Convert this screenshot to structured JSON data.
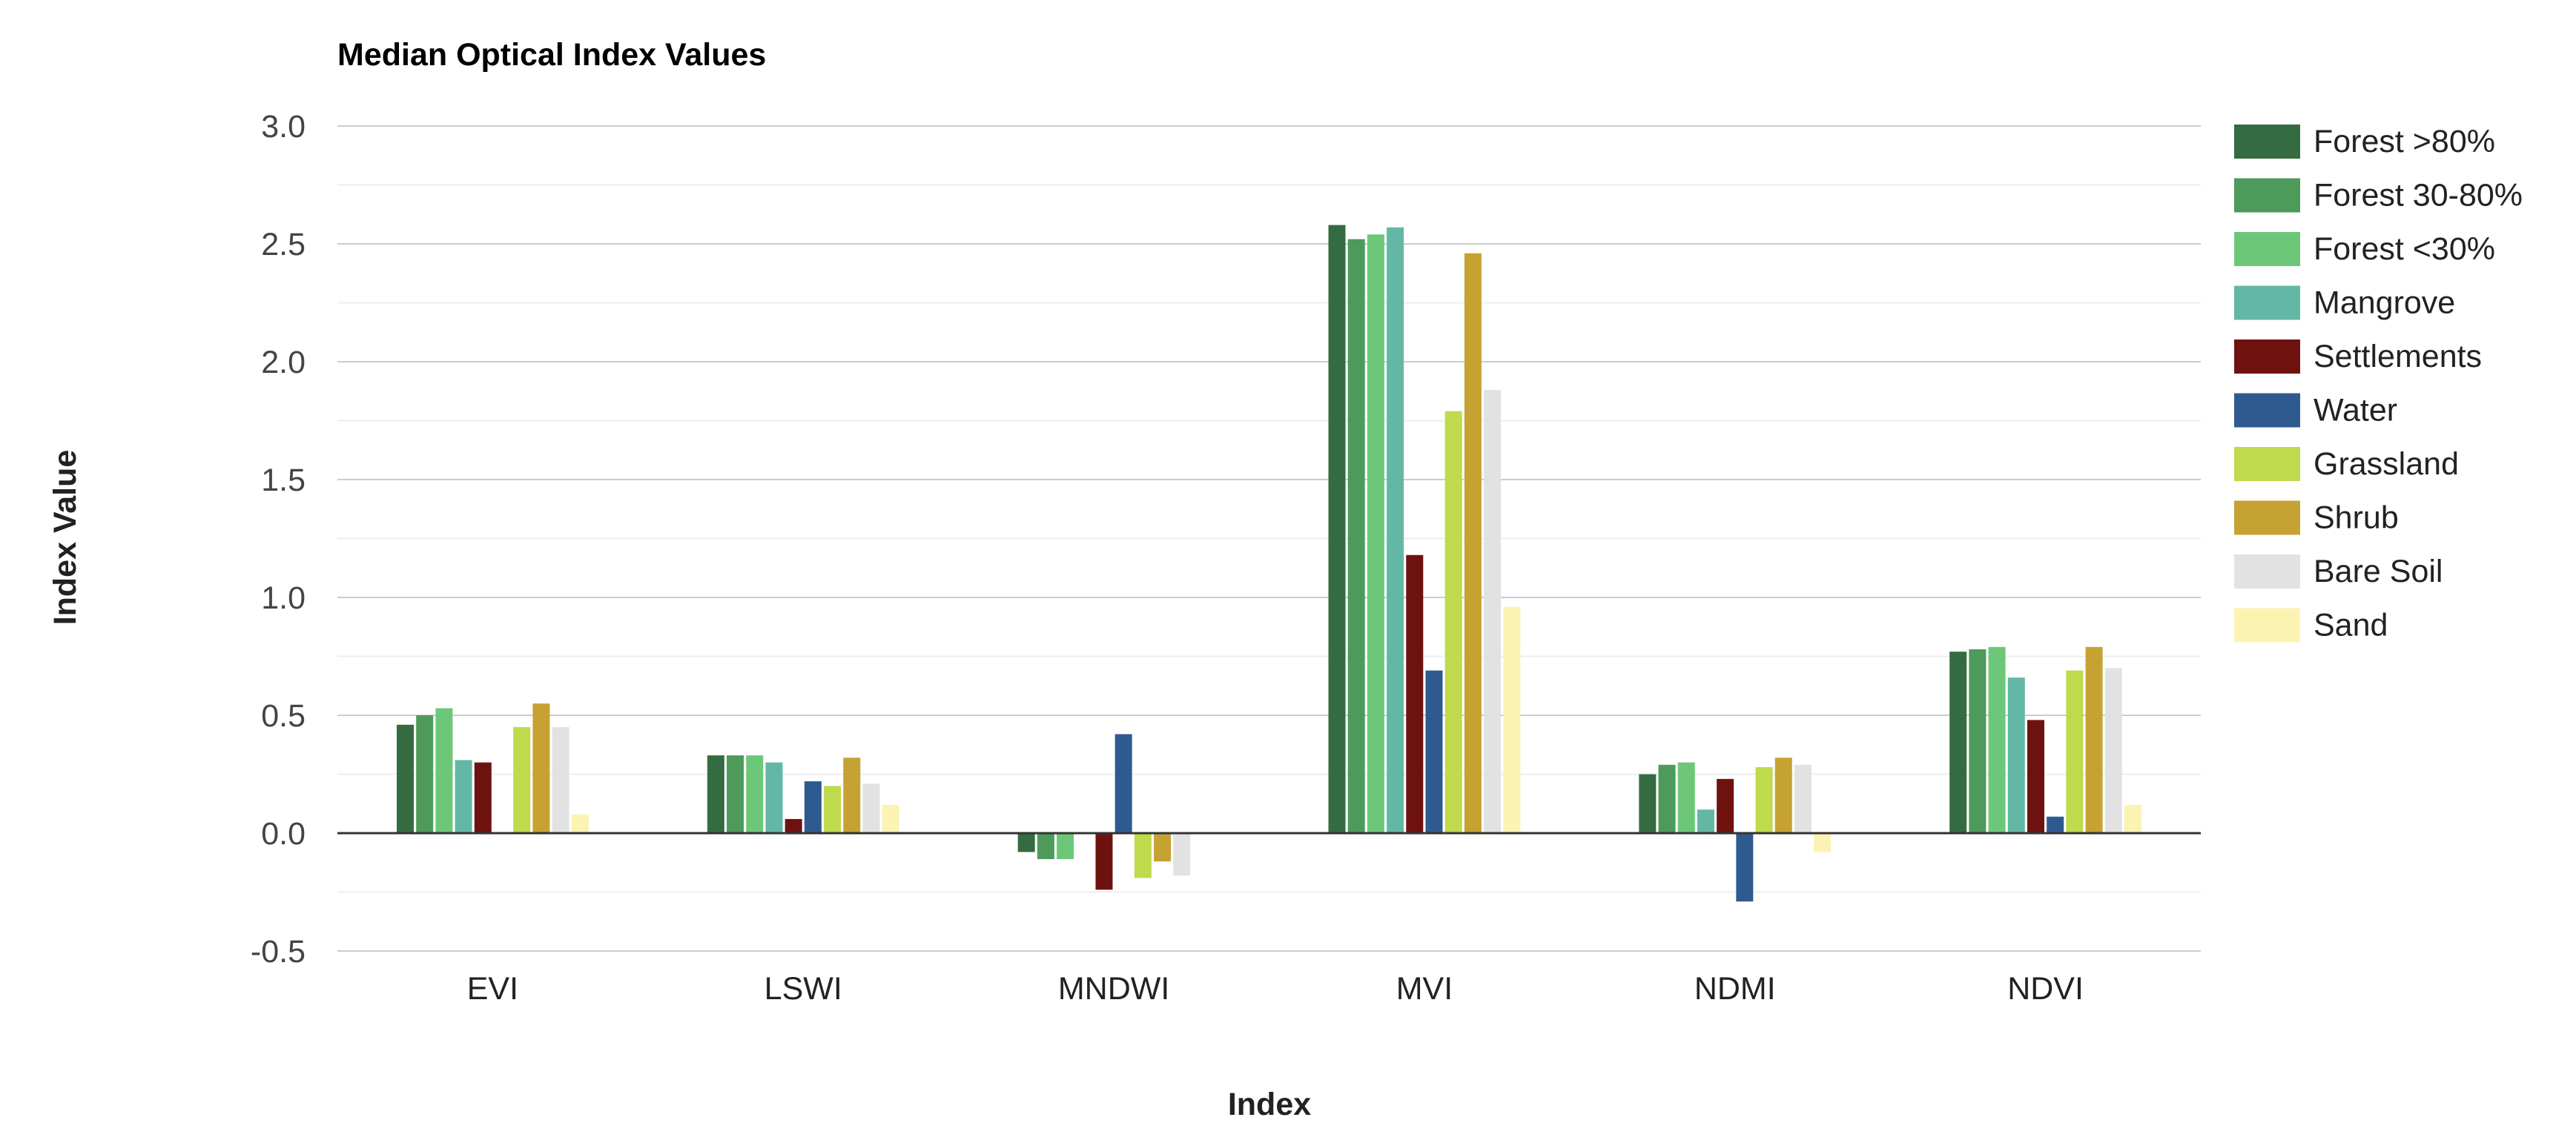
{
  "chart_data": {
    "type": "bar",
    "title": "Median Optical Index Values",
    "xlabel": "Index",
    "ylabel": "Index Value",
    "ylim": [
      -0.5,
      3.0
    ],
    "yticks": [
      "-0.5",
      "0.0",
      "0.5",
      "1.0",
      "1.5",
      "2.0",
      "2.5",
      "3.0"
    ],
    "grid": true,
    "legend_position": "right",
    "categories": [
      "EVI",
      "LSWI",
      "MNDWI",
      "MVI",
      "NDMI",
      "NDVI"
    ],
    "series": [
      {
        "name": "Forest >80%",
        "color": "#356b40",
        "values": [
          0.46,
          0.33,
          -0.08,
          2.58,
          0.25,
          0.77
        ]
      },
      {
        "name": "Forest 30-80%",
        "color": "#4d9a5b",
        "values": [
          0.5,
          0.33,
          -0.11,
          2.52,
          0.29,
          0.78
        ]
      },
      {
        "name": "Forest <30%",
        "color": "#6cc878",
        "values": [
          0.53,
          0.33,
          -0.11,
          2.54,
          0.3,
          0.79
        ]
      },
      {
        "name": "Mangrove",
        "color": "#63b8a5",
        "values": [
          0.31,
          0.3,
          0.0,
          2.57,
          0.1,
          0.66
        ]
      },
      {
        "name": "Settlements",
        "color": "#6e1210",
        "values": [
          0.3,
          0.06,
          -0.24,
          1.18,
          0.23,
          0.48
        ]
      },
      {
        "name": "Water",
        "color": "#2f5a8f",
        "values": [
          0.0,
          0.22,
          0.42,
          0.69,
          -0.29,
          0.07
        ]
      },
      {
        "name": "Grassland",
        "color": "#bfda4c",
        "values": [
          0.45,
          0.2,
          -0.19,
          1.79,
          0.28,
          0.69
        ]
      },
      {
        "name": "Shrub",
        "color": "#c6a233",
        "values": [
          0.55,
          0.32,
          -0.12,
          2.46,
          0.32,
          0.79
        ]
      },
      {
        "name": "Bare Soil",
        "color": "#e2e2e2",
        "values": [
          0.45,
          0.21,
          -0.18,
          1.88,
          0.29,
          0.7
        ]
      },
      {
        "name": "Sand",
        "color": "#fbf3b2",
        "values": [
          0.08,
          0.12,
          0.0,
          0.96,
          -0.08,
          0.12
        ]
      }
    ]
  }
}
